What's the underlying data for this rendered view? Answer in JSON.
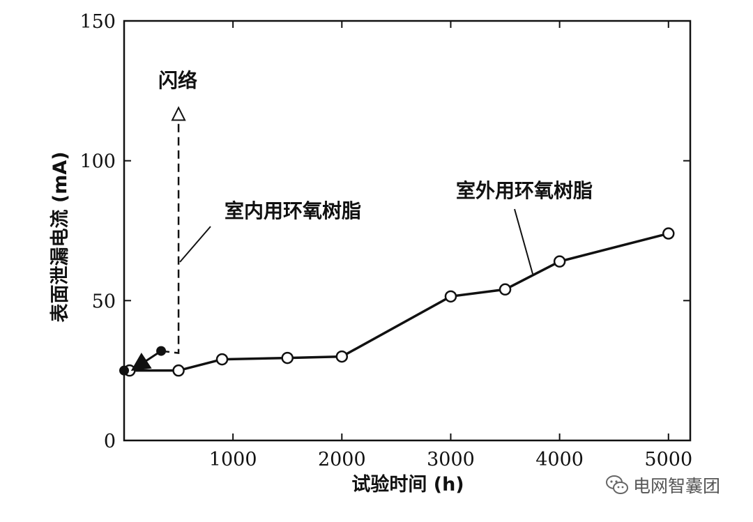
{
  "chart_data": {
    "type": "line",
    "xlabel": "试验时间 (h)",
    "ylabel": "表面泄漏电流 (mA)",
    "xlim": [
      0,
      5200
    ],
    "ylim": [
      0,
      150
    ],
    "x_ticks": [
      1000,
      2000,
      3000,
      4000,
      5000
    ],
    "y_ticks": [
      0,
      50,
      100,
      150
    ],
    "series": [
      {
        "name": "室外用环氧树脂",
        "marker": "open-circle",
        "line": "solid",
        "points": [
          [
            50,
            25
          ],
          [
            500,
            25
          ],
          [
            900,
            29
          ],
          [
            1500,
            29.5
          ],
          [
            2000,
            30
          ],
          [
            3000,
            51.5
          ],
          [
            3500,
            54
          ],
          [
            4000,
            64
          ],
          [
            5000,
            74
          ]
        ]
      },
      {
        "name": "室内用环氧树脂",
        "marker": "filled-circle",
        "line": "dashed",
        "points": [
          [
            0,
            25
          ],
          [
            500,
            32
          ]
        ],
        "flashover": {
          "x": 500,
          "y_from": 32,
          "y_to": 118,
          "label": "闪络"
        }
      }
    ],
    "annotations": {
      "outdoor_label": "室外用环氧树脂",
      "indoor_label": "室内用环氧树脂",
      "flashover_label": "闪络"
    }
  },
  "watermark": {
    "text": "电网智囊团",
    "icon": "wechat-icon"
  }
}
